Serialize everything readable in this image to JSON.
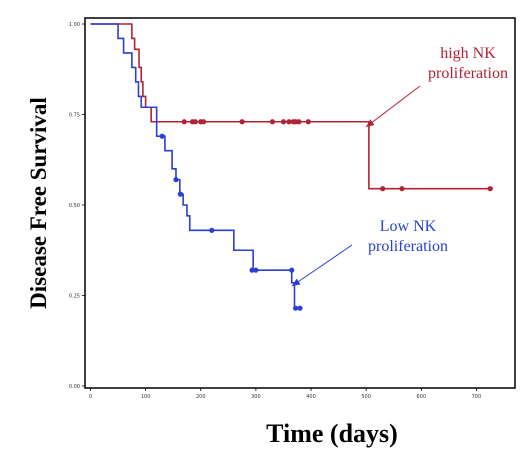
{
  "chart_data": {
    "type": "line",
    "xlabel": "Time (days)",
    "ylabel": "Disease Free Survival",
    "xlim": [
      -10,
      770
    ],
    "ylim": [
      0,
      1
    ],
    "x_ticks": [
      "0",
      "100",
      "200",
      "300",
      "400",
      "500",
      "600",
      "700"
    ],
    "y_ticks": [
      "0.00",
      "0.25",
      "0.50",
      "0.75",
      "1.00"
    ],
    "series": [
      {
        "name": "high NK proliferation",
        "color": "#b22234",
        "steps": [
          [
            0,
            1.0
          ],
          [
            75,
            0.96
          ],
          [
            80,
            0.93
          ],
          [
            88,
            0.88
          ],
          [
            92,
            0.84
          ],
          [
            95,
            0.8
          ],
          [
            100,
            0.77
          ],
          [
            110,
            0.73
          ],
          [
            505,
            0.545
          ],
          [
            730,
            0.545
          ]
        ],
        "censored": [
          [
            170,
            0.73
          ],
          [
            185,
            0.73
          ],
          [
            190,
            0.73
          ],
          [
            200,
            0.73
          ],
          [
            205,
            0.73
          ],
          [
            275,
            0.73
          ],
          [
            330,
            0.73
          ],
          [
            350,
            0.73
          ],
          [
            360,
            0.73
          ],
          [
            368,
            0.73
          ],
          [
            372,
            0.73
          ],
          [
            378,
            0.73
          ],
          [
            395,
            0.73
          ],
          [
            530,
            0.545
          ],
          [
            565,
            0.545
          ],
          [
            725,
            0.545
          ]
        ]
      },
      {
        "name": "Low NK proliferation",
        "color": "#2b3fd0",
        "steps": [
          [
            0,
            1.0
          ],
          [
            50,
            0.96
          ],
          [
            60,
            0.92
          ],
          [
            75,
            0.88
          ],
          [
            82,
            0.84
          ],
          [
            87,
            0.8
          ],
          [
            92,
            0.77
          ],
          [
            120,
            0.69
          ],
          [
            135,
            0.65
          ],
          [
            148,
            0.6
          ],
          [
            155,
            0.57
          ],
          [
            162,
            0.53
          ],
          [
            168,
            0.5
          ],
          [
            175,
            0.47
          ],
          [
            180,
            0.43
          ],
          [
            260,
            0.375
          ],
          [
            295,
            0.32
          ],
          [
            365,
            0.285
          ],
          [
            370,
            0.215
          ],
          [
            380,
            0.215
          ]
        ],
        "censored": [
          [
            130,
            0.69
          ],
          [
            155,
            0.57
          ],
          [
            163,
            0.53
          ],
          [
            220,
            0.43
          ],
          [
            293,
            0.32
          ],
          [
            300,
            0.32
          ],
          [
            365,
            0.32
          ],
          [
            372,
            0.215
          ],
          [
            380,
            0.215
          ]
        ]
      }
    ],
    "annotations": [
      {
        "series": 0,
        "lines": [
          "high NK",
          "proliferation"
        ]
      },
      {
        "series": 1,
        "lines": [
          "Low NK",
          "proliferation"
        ]
      }
    ]
  }
}
